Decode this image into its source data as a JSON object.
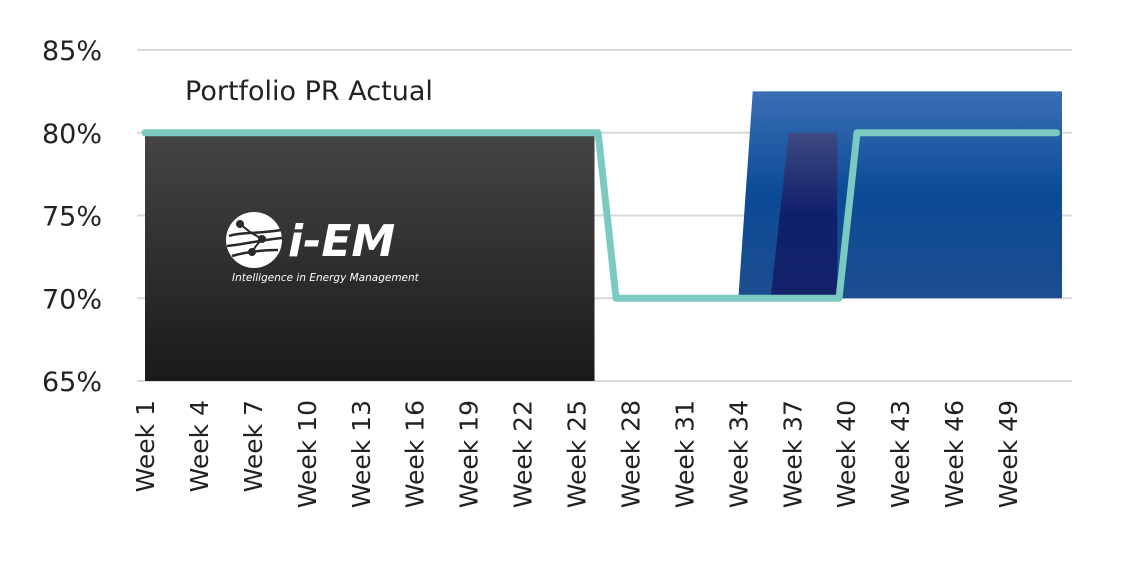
{
  "chart_data": {
    "type": "area",
    "x_categories": [
      "Week 1",
      "Week 4",
      "Week 7",
      "Week 10",
      "Week 13",
      "Week 16",
      "Week 19",
      "Week 22",
      "Week 25",
      "Week 28",
      "Week 31",
      "Week 34",
      "Week 37",
      "Week 40",
      "Week 43",
      "Week 46",
      "Week 49"
    ],
    "y_ticks": [
      "85%",
      "80%",
      "75%",
      "70%",
      "65%"
    ],
    "ylim": [
      65,
      85
    ],
    "grid": true,
    "annotation": "Portfolio PR Actual",
    "series": [
      {
        "values": [
          [
            1,
            80
          ],
          [
            26,
            80
          ],
          [
            26,
            65
          ],
          [
            52,
            65
          ],
          [
            52,
            80
          ]
        ],
        "color": "#2a2a2a"
      },
      {
        "values": [
          [
            34,
            70
          ],
          [
            34.8,
            82.5
          ],
          [
            52,
            82.5
          ]
        ],
        "color": "#1f5aa6"
      },
      {
        "values": [
          [
            35.8,
            70
          ],
          [
            36.8,
            80
          ],
          [
            39.5,
            80
          ]
        ],
        "color": "#12236e"
      },
      {
        "values": [
          [
            1,
            80
          ],
          [
            26.2,
            80
          ],
          [
            27.2,
            70
          ],
          [
            39.6,
            70
          ],
          [
            40.6,
            80
          ],
          [
            51.7,
            80
          ]
        ],
        "color": "#7bcac2"
      }
    ],
    "colors": {
      "text": "#222222",
      "grid": "#d9d9d9"
    }
  },
  "logo": {
    "name": "i-EM",
    "tagline": "Intelligence in Energy Management"
  }
}
